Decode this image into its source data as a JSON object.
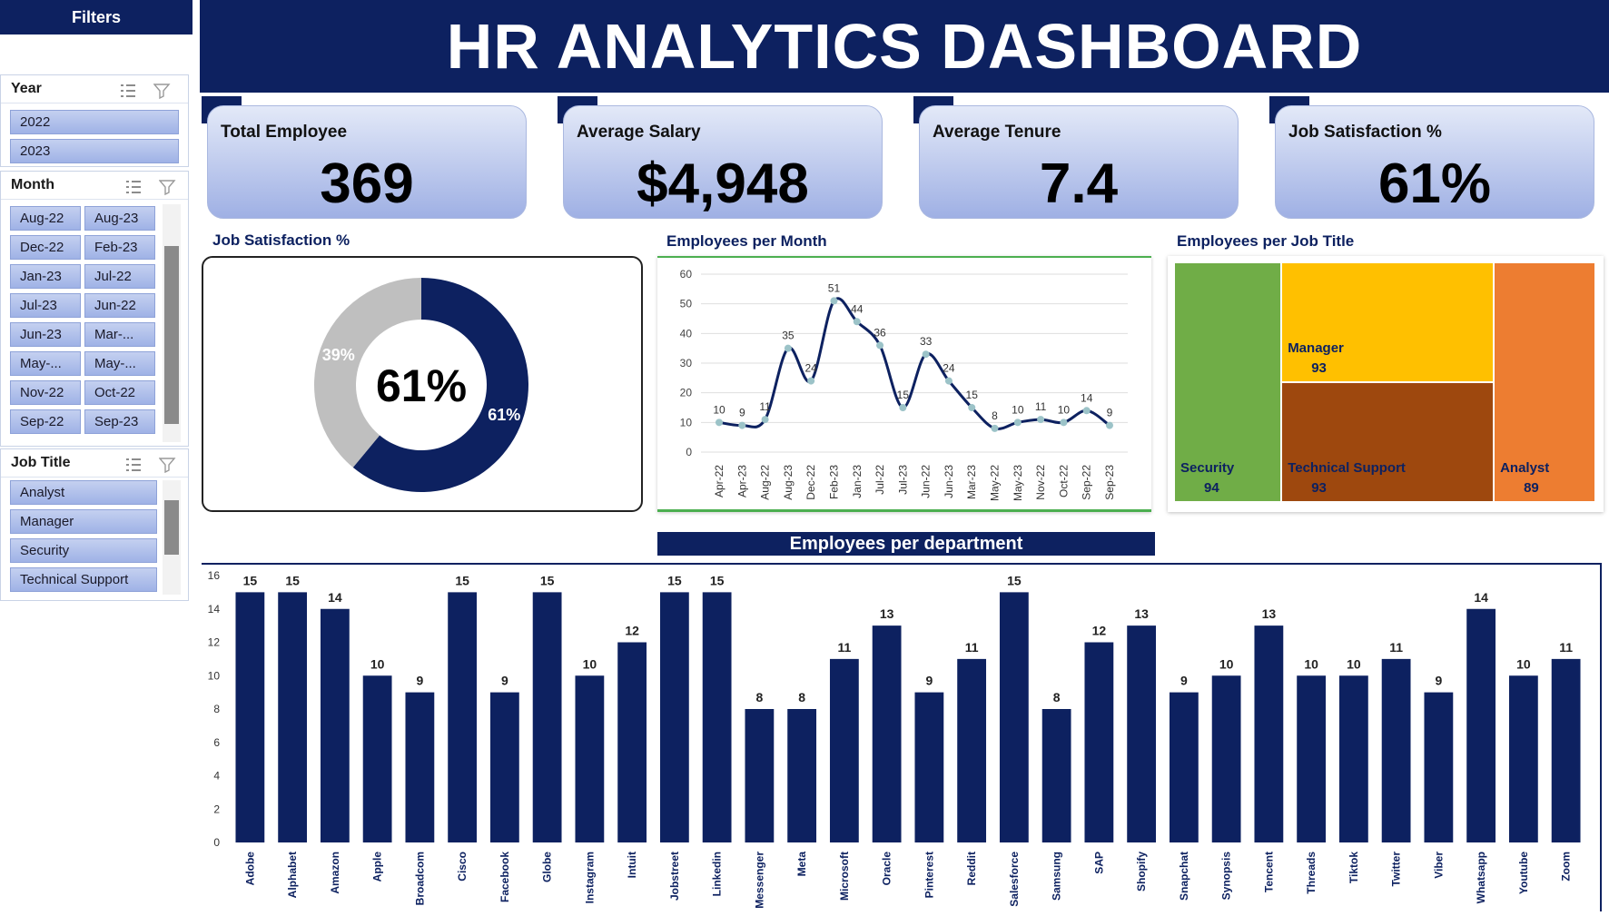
{
  "filters": {
    "title": "Filters",
    "year": {
      "title": "Year",
      "items": [
        "2022",
        "2023"
      ]
    },
    "month": {
      "title": "Month",
      "items": [
        "Aug-22",
        "Aug-23",
        "Dec-22",
        "Feb-23",
        "Jan-23",
        "Jul-22",
        "Jul-23",
        "Jun-22",
        "Jun-23",
        "Mar-...",
        "May-...",
        "May-...",
        "Nov-22",
        "Oct-22",
        "Sep-22",
        "Sep-23"
      ]
    },
    "job_title": {
      "title": "Job Title",
      "items": [
        "Analyst",
        "Manager",
        "Security",
        "Technical Support"
      ]
    }
  },
  "header": {
    "title": "HR ANALYTICS DASHBOARD"
  },
  "kpis": [
    {
      "label": "Total Employee",
      "value": "369"
    },
    {
      "label": "Average Salary",
      "value": "$4,948"
    },
    {
      "label": "Average Tenure",
      "value": "7.4"
    },
    {
      "label": "Job Satisfaction %",
      "value": "61%"
    }
  ],
  "colors": {
    "navy": "#0d2160",
    "grey": "#bfbfbf",
    "green": "#70ad47",
    "yellow": "#ffc000",
    "brown": "#9e480e",
    "orange": "#ed7d31",
    "line_accent": "#4caf50"
  },
  "chart_data": [
    {
      "type": "pie",
      "title": "Job Satisfaction %",
      "center_label": "61%",
      "slices": [
        {
          "label": "61%",
          "value": 61,
          "color": "#0d2160"
        },
        {
          "label": "39%",
          "value": 39,
          "color": "#bfbfbf"
        }
      ]
    },
    {
      "type": "line",
      "title": "Employees per Month",
      "categories": [
        "Apr-22",
        "Apr-23",
        "Aug-22",
        "Aug-23",
        "Dec-22",
        "Feb-23",
        "Jan-23",
        "Jul-22",
        "Jul-23",
        "Jun-22",
        "Jun-23",
        "Mar-23",
        "May-22",
        "May-23",
        "Nov-22",
        "Oct-22",
        "Sep-22",
        "Sep-23"
      ],
      "values": [
        10,
        9,
        11,
        35,
        24,
        51,
        44,
        36,
        15,
        33,
        24,
        15,
        8,
        10,
        11,
        10,
        14,
        9
      ],
      "ylim": [
        0,
        60
      ],
      "yticks": [
        0,
        10,
        20,
        30,
        40,
        50,
        60
      ],
      "grid": true
    },
    {
      "type": "treemap",
      "title": "Employees per Job Title",
      "items": [
        {
          "label": "Security",
          "value": 94,
          "color": "#70ad47"
        },
        {
          "label": "Manager",
          "value": 93,
          "color": "#ffc000"
        },
        {
          "label": "Technical Support",
          "value": 93,
          "color": "#9e480e"
        },
        {
          "label": "Analyst",
          "value": 89,
          "color": "#ed7d31"
        }
      ]
    },
    {
      "type": "bar",
      "title": "Employees per department",
      "categories": [
        "Adobe",
        "Alphabet",
        "Amazon",
        "Apple",
        "Broadcom",
        "Cisco",
        "Facebook",
        "Globe",
        "Instagram",
        "Intuit",
        "Jobstreet",
        "Linkedin",
        "Messenger",
        "Meta",
        "Microsoft",
        "Oracle",
        "Pinterest",
        "Reddit",
        "Salesforce",
        "Samsung",
        "SAP",
        "Shopify",
        "Snapchat",
        "Synopsis",
        "Tencent",
        "Threads",
        "Tiktok",
        "Twitter",
        "Viber",
        "Whatsapp",
        "Youtube",
        "Zoom"
      ],
      "values": [
        15,
        15,
        14,
        10,
        9,
        15,
        9,
        15,
        10,
        12,
        15,
        15,
        8,
        8,
        11,
        13,
        9,
        11,
        15,
        8,
        12,
        13,
        9,
        10,
        13,
        10,
        10,
        11,
        9,
        14,
        10,
        11
      ],
      "ylim": [
        0,
        16
      ],
      "yticks": [
        0,
        2,
        4,
        6,
        8,
        10,
        12,
        14,
        16
      ]
    }
  ]
}
